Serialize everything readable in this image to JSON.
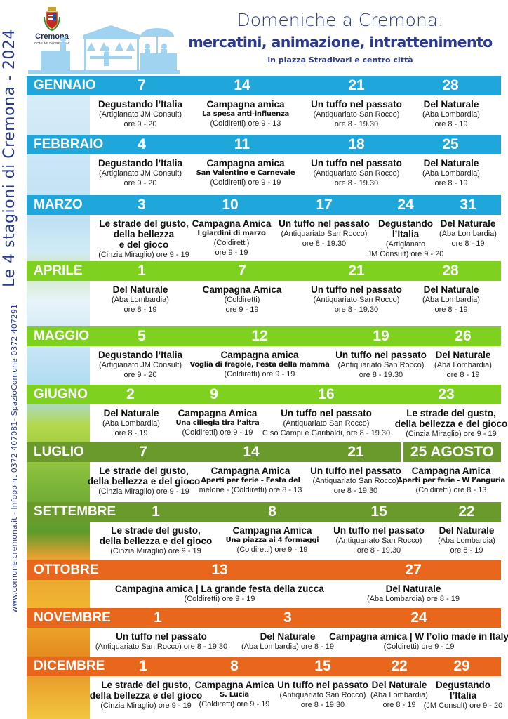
{
  "side": {
    "title": "Le 4 stagioni di Cremona - 2024",
    "contacts": "www.comune.cremona.it - Infopoint 0372 407081- SpazioComune 0372 407291"
  },
  "header": {
    "logo_text": "Cremona",
    "logo_subtext": "COMUNE DI CREMONA",
    "title": "Domeniche a Cremona:",
    "subtitle": "mercatini, animazione, intrattenimento",
    "location": "in piazza Stradivari e centro città"
  },
  "colors": {
    "winter": "#1fa6da",
    "spring": "#7ed11f",
    "summer": "#6b9a2c",
    "autumn": "#e8671c",
    "title": "#2b3a8c"
  },
  "months": [
    {
      "name": "GENNAIO",
      "season": "winter",
      "days": [
        "7",
        "14",
        "21",
        "28"
      ],
      "events": [
        {
          "lines": [
            [
              "t",
              "Degustando l’Italia"
            ],
            [
              "d",
              "(Artigianato JM Consult)"
            ],
            [
              "d",
              "ore 9 - 20"
            ]
          ]
        },
        {
          "lines": [
            [
              "t",
              "Campagna amica"
            ],
            [
              "g",
              "La spesa anti-influenza"
            ],
            [
              "d",
              "(Coldiretti) ore 9 - 13"
            ]
          ]
        },
        {
          "lines": [
            [
              "t",
              "Un tuffo nel passato"
            ],
            [
              "d",
              "(Antiquariato San Rocco)"
            ],
            [
              "d",
              "ore 8 - 19.30"
            ]
          ]
        },
        {
          "lines": [
            [
              "t",
              "Del Naturale"
            ],
            [
              "d",
              "(Aba Lombardia)"
            ],
            [
              "d",
              "ore 8 - 19"
            ]
          ]
        }
      ]
    },
    {
      "name": "FEBBRAIO",
      "season": "winter",
      "days": [
        "4",
        "11",
        "18",
        "25"
      ],
      "events": [
        {
          "lines": [
            [
              "t",
              "Degustando l’Italia"
            ],
            [
              "d",
              "(Artigianato JM Consult)"
            ],
            [
              "d",
              "ore 9 - 20"
            ]
          ]
        },
        {
          "lines": [
            [
              "t",
              "Campagna amica"
            ],
            [
              "g",
              "San Valentino e Carnevale"
            ],
            [
              "d",
              "(Coldiretti) ore 9 - 19"
            ]
          ]
        },
        {
          "lines": [
            [
              "t",
              "Un tuffo nel passato"
            ],
            [
              "d",
              "(Antiquariato San Rocco)"
            ],
            [
              "d",
              "ore 8 - 19.30"
            ]
          ]
        },
        {
          "lines": [
            [
              "t",
              "Del Naturale"
            ],
            [
              "d",
              "(Aba Lombardia)"
            ],
            [
              "d",
              "ore 8 - 19"
            ]
          ]
        }
      ]
    },
    {
      "name": "MARZO",
      "season": "winter",
      "days": [
        "3",
        "10",
        "17",
        "24",
        "31"
      ],
      "events": [
        {
          "lines": [
            [
              "t",
              "Le strade del gusto,"
            ],
            [
              "t",
              "della bellezza"
            ],
            [
              "t",
              "e del gioco"
            ],
            [
              "d",
              "(Cinzia Miraglio) ore 9 - 19"
            ]
          ]
        },
        {
          "lines": [
            [
              "t",
              "Campagna Amica"
            ],
            [
              "g",
              "I giardini di marzo"
            ],
            [
              "d",
              "(Coldiretti)"
            ],
            [
              "d",
              "ore 9 - 19"
            ]
          ]
        },
        {
          "lines": [
            [
              "t",
              "Un tuffo nel passato"
            ],
            [
              "d",
              "(Antiquariato San Rocco)"
            ],
            [
              "d",
              "ore 8 - 19.30"
            ]
          ]
        },
        {
          "lines": [
            [
              "t",
              "Degustando"
            ],
            [
              "t",
              "l’Italia"
            ],
            [
              "d",
              "(Artigianato"
            ],
            [
              "d",
              "JM Consult) ore 9 - 20"
            ]
          ]
        },
        {
          "lines": [
            [
              "t",
              "Del Naturale"
            ],
            [
              "d",
              "(Aba Lombardia)"
            ],
            [
              "d",
              "ore 8 - 19"
            ]
          ]
        }
      ]
    },
    {
      "name": "APRILE",
      "season": "spring",
      "days": [
        "1",
        "7",
        "21",
        "28"
      ],
      "events": [
        {
          "lines": [
            [
              "t",
              "Del Naturale"
            ],
            [
              "d",
              "(Aba Lombardia)"
            ],
            [
              "d",
              "ore 8 - 19"
            ]
          ]
        },
        {
          "lines": [
            [
              "t",
              "Campagna Amica"
            ],
            [
              "d",
              "(Coldiretti)"
            ],
            [
              "d",
              "ore 9 - 19"
            ]
          ]
        },
        {
          "lines": [
            [
              "t",
              "Un tuffo nel passato"
            ],
            [
              "d",
              "(Antiquariato San Rocco)"
            ],
            [
              "d",
              "ore 8 - 19.30"
            ]
          ]
        },
        {
          "lines": [
            [
              "t",
              "Del Naturale"
            ],
            [
              "d",
              "(Aba Lombardia)"
            ],
            [
              "d",
              "ore 8 - 19"
            ]
          ]
        }
      ]
    },
    {
      "name": "MAGGIO",
      "season": "spring",
      "days": [
        "5",
        "12",
        "19",
        "26"
      ],
      "events": [
        {
          "lines": [
            [
              "t",
              "Degustando l’Italia"
            ],
            [
              "d",
              "(Artigianato JM Consult)"
            ],
            [
              "d",
              "ore 9 - 20"
            ]
          ]
        },
        {
          "lines": [
            [
              "t",
              "Campagna amica"
            ],
            [
              "g",
              "Voglia di fragole, Festa della mamma"
            ],
            [
              "d",
              "(Coldiretti) ore 9 - 19"
            ]
          ]
        },
        {
          "lines": [
            [
              "t",
              "Un tuffo nel passato"
            ],
            [
              "d",
              "(Antiquariato San Rocco)"
            ],
            [
              "d",
              "ore 8 - 19.30"
            ]
          ]
        },
        {
          "lines": [
            [
              "t",
              "Del Naturale"
            ],
            [
              "d",
              "(Aba Lombardia)"
            ],
            [
              "d",
              "ore 8 - 19"
            ]
          ]
        }
      ]
    },
    {
      "name": "GIUGNO",
      "season": "spring",
      "days": [
        "2",
        "9",
        "16",
        "23"
      ],
      "events": [
        {
          "lines": [
            [
              "t",
              "Del Naturale"
            ],
            [
              "d",
              "(Aba Lombardia)"
            ],
            [
              "d",
              "ore 8 - 19"
            ]
          ]
        },
        {
          "lines": [
            [
              "t",
              "Campagna Amica"
            ],
            [
              "g",
              "Una ciliegia tira l’altra"
            ],
            [
              "d",
              "(Coldiretti) ore 9 - 19"
            ]
          ]
        },
        {
          "lines": [
            [
              "t",
              "Un tuffo nel passato"
            ],
            [
              "d",
              "(Antiquariato San Rocco)"
            ],
            [
              "d",
              "C.so Campi e Garibaldi, ore 8 - 19.30"
            ]
          ]
        },
        {
          "lines": [
            [
              "t",
              "Le strade del gusto,"
            ],
            [
              "t",
              "della bellezza e del gioco"
            ],
            [
              "d",
              "(Cinzia Miraglio) ore 9 - 19"
            ]
          ]
        }
      ]
    },
    {
      "name": "LUGLIO",
      "season": "summer",
      "days": [
        "7",
        "14",
        "21"
      ],
      "extra_date": "25 AGOSTO",
      "events": [
        {
          "lines": [
            [
              "t",
              "Le strade del gusto,"
            ],
            [
              "t",
              "della bellezza e del gioco"
            ],
            [
              "d",
              "(Cinzia Miraglio) ore 9 - 19"
            ]
          ]
        },
        {
          "lines": [
            [
              "t",
              "Campagna Amica"
            ],
            [
              "g",
              "Aperti per ferie - Festa del"
            ],
            [
              "d",
              "melone - (Coldiretti) ore 8 - 13"
            ]
          ]
        },
        {
          "lines": [
            [
              "t",
              "Un tuffo nel passato"
            ],
            [
              "d",
              "(Antiquariato San Rocco)"
            ],
            [
              "d",
              "ore 8 - 19.30"
            ]
          ]
        },
        {
          "lines": [
            [
              "t",
              "Campagna Amica"
            ],
            [
              "g",
              "Aperti per ferie - W l’anguria"
            ],
            [
              "d",
              "(Coldiretti) ore 8 - 13"
            ]
          ]
        }
      ]
    },
    {
      "name": "SETTEMBRE",
      "season": "summer",
      "days": [
        "1",
        "8",
        "15",
        "22"
      ],
      "events": [
        {
          "lines": [
            [
              "t",
              "Le strade del gusto,"
            ],
            [
              "t",
              "della bellezza e del gioco"
            ],
            [
              "d",
              "(Cinzia Miraglio) ore 9 - 19"
            ]
          ]
        },
        {
          "lines": [
            [
              "t",
              "Campagna Amica"
            ],
            [
              "g",
              "Una piazza ai 4 formaggi"
            ],
            [
              "d",
              "(Coldiretti) ore 9 - 19"
            ]
          ]
        },
        {
          "lines": [
            [
              "t",
              "Un tuffo nel passato"
            ],
            [
              "d",
              "(Antiquariato San Rocco)"
            ],
            [
              "d",
              "ore 8 - 19.30"
            ]
          ]
        },
        {
          "lines": [
            [
              "t",
              "Del Naturale"
            ],
            [
              "d",
              "(Aba Lombardia)"
            ],
            [
              "d",
              "ore 8 - 19"
            ]
          ]
        }
      ]
    },
    {
      "name": "OTTOBRE",
      "season": "autumn",
      "days": [
        "13",
        "27"
      ],
      "events": [
        {
          "lines": [
            [
              "t",
              "Campagna amica | La grande festa della zucca"
            ],
            [
              "d",
              "(Coldiretti) ore 9 - 19"
            ]
          ]
        },
        {
          "lines": [
            [
              "t",
              "Del Naturale"
            ],
            [
              "d",
              "(Aba Lombardia) ore 8 - 19"
            ]
          ]
        }
      ]
    },
    {
      "name": "NOVEMBRE",
      "season": "autumn",
      "days": [
        "1",
        "3",
        "24"
      ],
      "events": [
        {
          "lines": [
            [
              "t",
              "Un tuffo nel passato"
            ],
            [
              "d",
              "(Antiquariato San Rocco) ore 8 - 19.30"
            ]
          ]
        },
        {
          "lines": [
            [
              "t",
              "Del Naturale"
            ],
            [
              "d",
              "(Aba Lombardia) ore 8 - 19"
            ]
          ]
        },
        {
          "lines": [
            [
              "t",
              "Campagna amica | W l’olio made in Italy"
            ],
            [
              "d",
              "(Coldiretti) ore 9 - 19"
            ]
          ]
        }
      ]
    },
    {
      "name": "DICEMBRE",
      "season": "autumn",
      "days": [
        "1",
        "8",
        "15",
        "22",
        "29"
      ],
      "events": [
        {
          "lines": [
            [
              "t",
              "Le strade del gusto,"
            ],
            [
              "t",
              "della bellezza e del gioco"
            ],
            [
              "d",
              "(Cinzia Miraglio) ore 9 - 19"
            ]
          ]
        },
        {
          "lines": [
            [
              "t",
              "Campagna Amica"
            ],
            [
              "g",
              "S. Lucia"
            ],
            [
              "d",
              "(Coldiretti) ore 9 - 19"
            ]
          ]
        },
        {
          "lines": [
            [
              "t",
              "Un tuffo nel passato"
            ],
            [
              "d",
              "(Antiquariato San Rocco)"
            ],
            [
              "d",
              "ore 8 - 19.30"
            ]
          ]
        },
        {
          "lines": [
            [
              "t",
              "Del Naturale"
            ],
            [
              "d",
              "(Aba Lombardia)"
            ],
            [
              "d",
              "ore 8 - 19"
            ]
          ]
        },
        {
          "lines": [
            [
              "t",
              "Degustando"
            ],
            [
              "t",
              "l’Italia"
            ],
            [
              "d",
              "(JM Consult) ore 9 - 20"
            ]
          ]
        }
      ]
    }
  ]
}
